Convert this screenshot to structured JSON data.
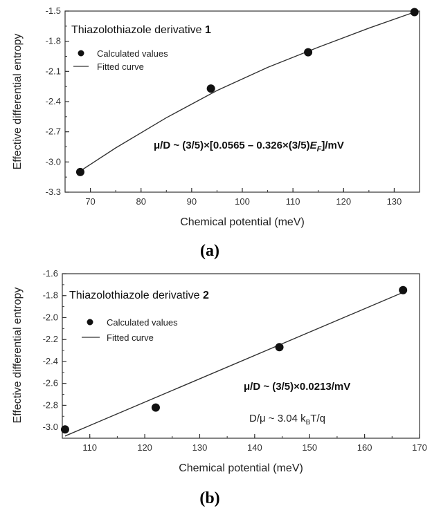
{
  "chart_data": [
    {
      "type": "scatter",
      "panel_label": "(a)",
      "title_text": "Thiazolothiazole derivative ",
      "title_bold": "1",
      "xlabel": "Chemical potential (meV)",
      "ylabel": "Effective differential entropy",
      "xlim": [
        65,
        135
      ],
      "ylim": [
        -3.3,
        -1.5
      ],
      "xticks": [
        70,
        80,
        90,
        100,
        110,
        120,
        130
      ],
      "yticks": [
        -3.3,
        -3.0,
        -2.7,
        -2.4,
        -2.1,
        -1.8,
        -1.5
      ],
      "ytick_labels": [
        "-3.3",
        "-3.0",
        "-2.7",
        "-2.4",
        "-2.1",
        "-1.8",
        "-1.5"
      ],
      "legend": [
        "Calculated values",
        "Fitted curve"
      ],
      "equation_prefix": "μ/D ~ (3/5)×[0.0565 – 0.326×(3/5)",
      "equation_var": "E",
      "equation_sub": "F",
      "equation_suffix": "]/mV",
      "points": {
        "x": [
          68,
          93.8,
          113,
          134
        ],
        "y": [
          -3.1,
          -2.27,
          -1.91,
          -1.51
        ]
      },
      "fit": {
        "x": [
          68,
          75,
          85,
          95,
          105,
          115,
          125,
          134
        ],
        "y": [
          -3.09,
          -2.86,
          -2.56,
          -2.29,
          -2.06,
          -1.86,
          -1.67,
          -1.51
        ]
      },
      "grid": false,
      "legend_position": "top-left"
    },
    {
      "type": "scatter",
      "panel_label": "(b)",
      "title_text": "Thiazolothiazole derivative ",
      "title_bold": "2",
      "xlabel": "Chemical potential (meV)",
      "ylabel": "Effective differential entropy",
      "xlim": [
        105,
        170
      ],
      "ylim": [
        -3.1,
        -1.6
      ],
      "xticks": [
        110,
        120,
        130,
        140,
        150,
        160,
        170
      ],
      "yticks": [
        -3.0,
        -2.8,
        -2.6,
        -2.4,
        -2.2,
        -2.0,
        -1.8,
        -1.6
      ],
      "ytick_labels": [
        "-3.0",
        "-2.8",
        "-2.6",
        "-2.4",
        "-2.2",
        "-2.0",
        "-1.8",
        "-1.6"
      ],
      "legend": [
        "Calculated values",
        "Fitted curve"
      ],
      "equation": "μ/D ~ (3/5)×0.0213/mV",
      "note_prefix": "D/μ ~ 3.04 k",
      "note_sub": "B",
      "note_suffix": "T/q",
      "points": {
        "x": [
          105.5,
          122,
          144.5,
          167
        ],
        "y": [
          -3.02,
          -2.82,
          -2.27,
          -1.75
        ]
      },
      "fit": {
        "x": [
          105.5,
          167
        ],
        "y": [
          -3.08,
          -1.77
        ]
      },
      "grid": false,
      "legend_position": "top-left"
    }
  ]
}
